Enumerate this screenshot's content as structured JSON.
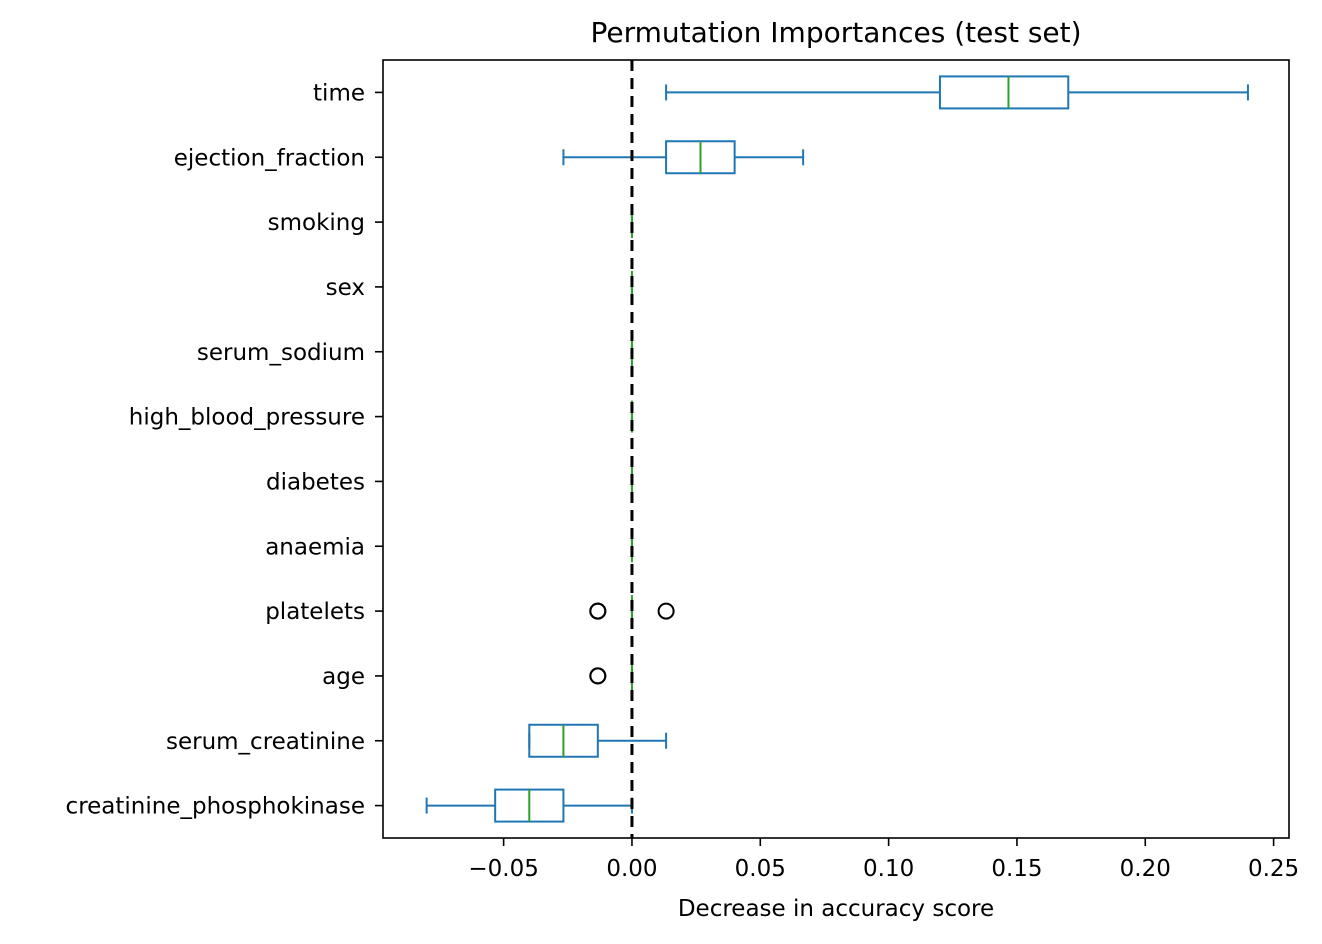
{
  "chart_data": {
    "type": "boxplot",
    "orientation": "horizontal",
    "title": "Permutation Importances (test set)",
    "xlabel": "Decrease in accuracy score",
    "ylabel": "",
    "xlim": [
      -0.097,
      0.256
    ],
    "xticks": [
      -0.05,
      0.0,
      0.05,
      0.1,
      0.15,
      0.2,
      0.25
    ],
    "xtick_labels": [
      "−0.05",
      "0.00",
      "0.05",
      "0.10",
      "0.15",
      "0.20",
      "0.25"
    ],
    "reference_line": {
      "x": 0.0,
      "style": "dashed",
      "color": "#000000"
    },
    "colors": {
      "box": "#1f77b4",
      "median": "#2ca02c",
      "flier": "#000000"
    },
    "features": [
      {
        "name": "creatinine_phosphokinase",
        "whisker_low": -0.08,
        "q1": -0.0533,
        "median": -0.04,
        "q3": -0.0267,
        "whisker_high": 0.0,
        "outliers": []
      },
      {
        "name": "serum_creatinine",
        "whisker_low": -0.04,
        "q1": -0.04,
        "median": -0.0267,
        "q3": -0.0133,
        "whisker_high": 0.0133,
        "outliers": []
      },
      {
        "name": "age",
        "whisker_low": 0.0,
        "q1": 0.0,
        "median": 0.0,
        "q3": 0.0,
        "whisker_high": 0.0,
        "outliers": [
          -0.0133,
          -0.0133
        ]
      },
      {
        "name": "platelets",
        "whisker_low": 0.0,
        "q1": 0.0,
        "median": 0.0,
        "q3": 0.0,
        "whisker_high": 0.0,
        "outliers": [
          -0.0133,
          -0.0133,
          0.0133
        ]
      },
      {
        "name": "anaemia",
        "whisker_low": 0.0,
        "q1": 0.0,
        "median": 0.0,
        "q3": 0.0,
        "whisker_high": 0.0,
        "outliers": []
      },
      {
        "name": "diabetes",
        "whisker_low": 0.0,
        "q1": 0.0,
        "median": 0.0,
        "q3": 0.0,
        "whisker_high": 0.0,
        "outliers": []
      },
      {
        "name": "high_blood_pressure",
        "whisker_low": 0.0,
        "q1": 0.0,
        "median": 0.0,
        "q3": 0.0,
        "whisker_high": 0.0,
        "outliers": []
      },
      {
        "name": "serum_sodium",
        "whisker_low": 0.0,
        "q1": 0.0,
        "median": 0.0,
        "q3": 0.0,
        "whisker_high": 0.0,
        "outliers": []
      },
      {
        "name": "sex",
        "whisker_low": 0.0,
        "q1": 0.0,
        "median": 0.0,
        "q3": 0.0,
        "whisker_high": 0.0,
        "outliers": []
      },
      {
        "name": "smoking",
        "whisker_low": 0.0,
        "q1": 0.0,
        "median": 0.0,
        "q3": 0.0,
        "whisker_high": 0.0,
        "outliers": []
      },
      {
        "name": "ejection_fraction",
        "whisker_low": -0.0267,
        "q1": 0.0133,
        "median": 0.0267,
        "q3": 0.04,
        "whisker_high": 0.0667,
        "outliers": []
      },
      {
        "name": "time",
        "whisker_low": 0.0133,
        "q1": 0.12,
        "median": 0.1467,
        "q3": 0.17,
        "whisker_high": 0.24,
        "outliers": []
      }
    ]
  }
}
